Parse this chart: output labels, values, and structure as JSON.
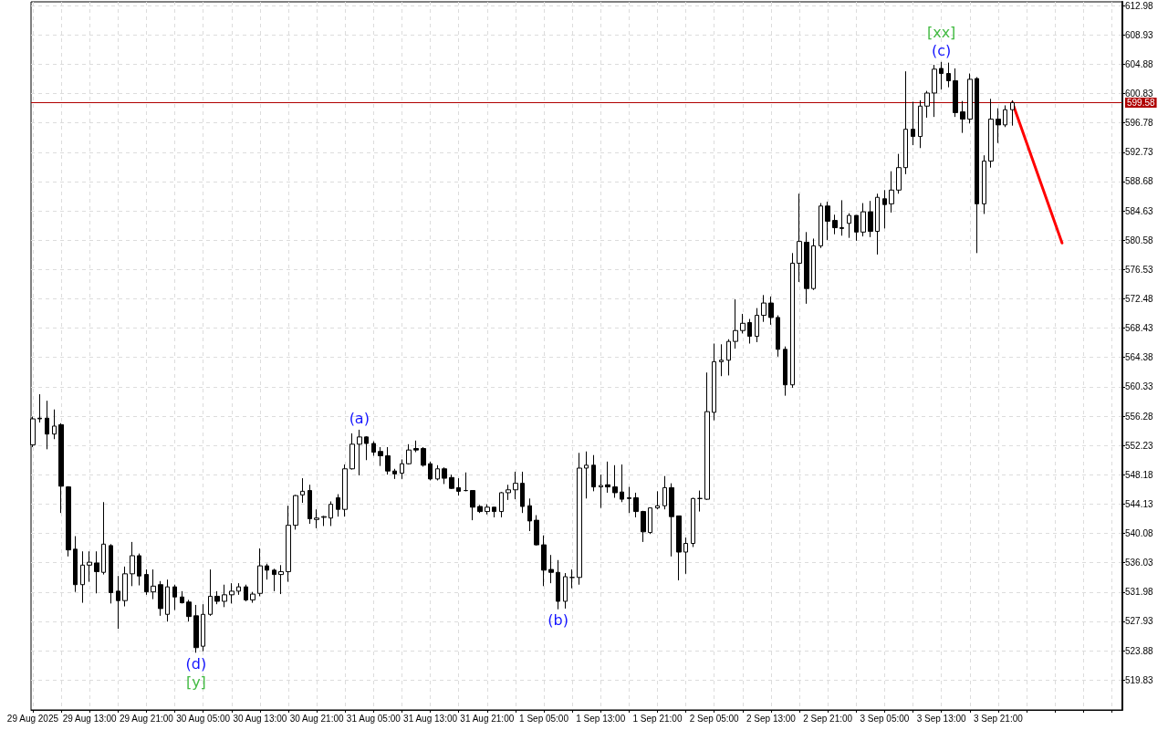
{
  "chart_data": {
    "type": "candlestick",
    "xlim": [
      "2025-08-29T04:45",
      "2025-09-04T14:30"
    ],
    "ylim": [
      515.7,
      613.5
    ],
    "xticks": [
      {
        "value": "2025-08-29T05:00",
        "label": "29 Aug 2025"
      },
      {
        "value": "2025-08-29T09:00",
        "label": null
      },
      {
        "value": "2025-08-29T13:00",
        "label": "29 Aug 13:00"
      },
      {
        "value": "2025-08-29T17:00",
        "label": null
      },
      {
        "value": "2025-08-29T21:00",
        "label": "29 Aug 21:00"
      },
      {
        "value": "2025-08-30T01:00",
        "label": null
      },
      {
        "value": "2025-08-30T05:00",
        "label": "30 Aug 05:00"
      },
      {
        "value": "2025-08-30T09:00",
        "label": null
      },
      {
        "value": "2025-08-30T13:00",
        "label": "30 Aug 13:00"
      },
      {
        "value": "2025-08-30T17:00",
        "label": null
      },
      {
        "value": "2025-08-30T21:00",
        "label": "30 Aug 21:00"
      },
      {
        "value": "2025-08-31T01:00",
        "label": null
      },
      {
        "value": "2025-08-31T05:00",
        "label": "31 Aug 05:00"
      },
      {
        "value": "2025-08-31T09:00",
        "label": null
      },
      {
        "value": "2025-08-31T13:00",
        "label": "31 Aug 13:00"
      },
      {
        "value": "2025-08-31T17:00",
        "label": null
      },
      {
        "value": "2025-08-31T21:00",
        "label": "31 Aug 21:00"
      },
      {
        "value": "2025-09-01T01:00",
        "label": null
      },
      {
        "value": "2025-09-01T05:00",
        "label": "1 Sep 05:00"
      },
      {
        "value": "2025-09-01T09:00",
        "label": null
      },
      {
        "value": "2025-09-01T13:00",
        "label": "1 Sep 13:00"
      },
      {
        "value": "2025-09-01T17:00",
        "label": null
      },
      {
        "value": "2025-09-01T21:00",
        "label": "1 Sep 21:00"
      },
      {
        "value": "2025-09-02T01:00",
        "label": null
      },
      {
        "value": "2025-09-02T05:00",
        "label": "2 Sep 05:00"
      },
      {
        "value": "2025-09-02T09:00",
        "label": null
      },
      {
        "value": "2025-09-02T13:00",
        "label": "2 Sep 13:00"
      },
      {
        "value": "2025-09-02T17:00",
        "label": null
      },
      {
        "value": "2025-09-02T21:00",
        "label": "2 Sep 21:00"
      },
      {
        "value": "2025-09-03T01:00",
        "label": null
      },
      {
        "value": "2025-09-03T05:00",
        "label": "3 Sep 05:00"
      },
      {
        "value": "2025-09-03T09:00",
        "label": null
      },
      {
        "value": "2025-09-03T13:00",
        "label": "3 Sep 13:00"
      },
      {
        "value": "2025-09-03T17:00",
        "label": null
      },
      {
        "value": "2025-09-03T21:00",
        "label": "3 Sep 21:00"
      },
      {
        "value": "2025-09-04T01:00",
        "label": null
      },
      {
        "value": "2025-09-04T05:00",
        "label": null
      },
      {
        "value": "2025-09-04T09:00",
        "label": null
      },
      {
        "value": "2025-09-04T13:00",
        "label": null
      }
    ],
    "yticks": [
      519.83,
      523.88,
      527.93,
      531.98,
      536.03,
      540.08,
      544.13,
      548.18,
      552.23,
      556.28,
      560.33,
      564.38,
      568.43,
      572.48,
      576.53,
      580.58,
      584.63,
      588.68,
      592.73,
      596.78,
      600.83,
      604.88,
      608.93,
      612.98
    ],
    "grid": true,
    "marker": "none",
    "series": [
      {
        "color": "#000000",
        "x": [
          "2025-08-29T05:00",
          "2025-08-29T06:00",
          "2025-08-29T07:00",
          "2025-08-29T08:00",
          "2025-08-29T09:00",
          "2025-08-29T10:00",
          "2025-08-29T11:00",
          "2025-08-29T12:00",
          "2025-08-29T13:00",
          "2025-08-29T14:00",
          "2025-08-29T15:00",
          "2025-08-29T16:00",
          "2025-08-29T17:00",
          "2025-08-29T18:00",
          "2025-08-29T19:00",
          "2025-08-29T20:00",
          "2025-08-29T21:00",
          "2025-08-29T22:00",
          "2025-08-29T23:00",
          "2025-08-30T00:00",
          "2025-08-30T01:00",
          "2025-08-30T02:00",
          "2025-08-30T03:00",
          "2025-08-30T04:00",
          "2025-08-30T05:00",
          "2025-08-30T06:00",
          "2025-08-30T07:00",
          "2025-08-30T08:00",
          "2025-08-30T09:00",
          "2025-08-30T10:00",
          "2025-08-30T11:00",
          "2025-08-30T12:00",
          "2025-08-30T13:00",
          "2025-08-30T14:00",
          "2025-08-30T15:00",
          "2025-08-30T16:00",
          "2025-08-30T17:00",
          "2025-08-30T18:00",
          "2025-08-30T19:00",
          "2025-08-30T20:00",
          "2025-08-30T21:00",
          "2025-08-30T22:00",
          "2025-08-30T23:00",
          "2025-08-31T00:00",
          "2025-08-31T01:00",
          "2025-08-31T02:00",
          "2025-08-31T03:00",
          "2025-08-31T04:00",
          "2025-08-31T05:00",
          "2025-08-31T06:00",
          "2025-08-31T07:00",
          "2025-08-31T08:00",
          "2025-08-31T09:00",
          "2025-08-31T10:00",
          "2025-08-31T11:00",
          "2025-08-31T12:00",
          "2025-08-31T13:00",
          "2025-08-31T14:00",
          "2025-08-31T15:00",
          "2025-08-31T16:00",
          "2025-08-31T17:00",
          "2025-08-31T18:00",
          "2025-08-31T19:00",
          "2025-08-31T20:00",
          "2025-08-31T21:00",
          "2025-08-31T22:00",
          "2025-08-31T23:00",
          "2025-09-01T00:00",
          "2025-09-01T01:00",
          "2025-09-01T02:00",
          "2025-09-01T03:00",
          "2025-09-01T04:00",
          "2025-09-01T05:00",
          "2025-09-01T06:00",
          "2025-09-01T07:00",
          "2025-09-01T08:00",
          "2025-09-01T09:00",
          "2025-09-01T10:00",
          "2025-09-01T11:00",
          "2025-09-01T12:00",
          "2025-09-01T13:00",
          "2025-09-01T14:00",
          "2025-09-01T15:00",
          "2025-09-01T16:00",
          "2025-09-01T17:00",
          "2025-09-01T18:00",
          "2025-09-01T19:00",
          "2025-09-01T20:00",
          "2025-09-01T21:00",
          "2025-09-01T22:00",
          "2025-09-01T23:00",
          "2025-09-02T00:00",
          "2025-09-02T01:00",
          "2025-09-02T02:00",
          "2025-09-02T03:00",
          "2025-09-02T04:00",
          "2025-09-02T05:00",
          "2025-09-02T06:00",
          "2025-09-02T07:00",
          "2025-09-02T08:00",
          "2025-09-02T09:00",
          "2025-09-02T10:00",
          "2025-09-02T11:00",
          "2025-09-02T12:00",
          "2025-09-02T13:00",
          "2025-09-02T14:00",
          "2025-09-02T15:00",
          "2025-09-02T16:00",
          "2025-09-02T17:00",
          "2025-09-02T18:00",
          "2025-09-02T19:00",
          "2025-09-02T20:00",
          "2025-09-02T21:00",
          "2025-09-02T22:00",
          "2025-09-02T23:00",
          "2025-09-03T00:00",
          "2025-09-03T01:00",
          "2025-09-03T02:00",
          "2025-09-03T03:00",
          "2025-09-03T04:00",
          "2025-09-03T05:00",
          "2025-09-03T06:00",
          "2025-09-03T07:00",
          "2025-09-03T08:00",
          "2025-09-03T09:00",
          "2025-09-03T10:00",
          "2025-09-03T11:00",
          "2025-09-03T12:00",
          "2025-09-03T13:00",
          "2025-09-03T14:00",
          "2025-09-03T15:00",
          "2025-09-03T16:00",
          "2025-09-03T17:00",
          "2025-09-03T18:00",
          "2025-09-03T19:00",
          "2025-09-03T20:00",
          "2025-09-03T21:00",
          "2025-09-03T22:00",
          "2025-09-03T23:00"
        ],
        "ohlc": [
          [
            552.3,
            556.2,
            552.0,
            555.9
          ],
          [
            556.0,
            559.3,
            555.4,
            555.9
          ],
          [
            556.0,
            558.4,
            551.7,
            553.8
          ],
          [
            553.8,
            557.2,
            553.1,
            554.9
          ],
          [
            555.1,
            555.3,
            542.9,
            546.6
          ],
          [
            546.5,
            546.6,
            536.9,
            537.8
          ],
          [
            537.9,
            539.7,
            532.0,
            533.0
          ],
          [
            533.0,
            537.6,
            530.5,
            535.7
          ],
          [
            535.7,
            537.6,
            533.4,
            536.1
          ],
          [
            536.0,
            537.6,
            531.8,
            534.8
          ],
          [
            534.7,
            544.4,
            534.4,
            538.6
          ],
          [
            538.4,
            538.6,
            530.4,
            531.9
          ],
          [
            532.1,
            534.2,
            526.9,
            530.8
          ],
          [
            530.8,
            535.5,
            530.0,
            534.5
          ],
          [
            534.5,
            538.9,
            532.8,
            537.0
          ],
          [
            537.0,
            537.3,
            532.9,
            534.2
          ],
          [
            534.4,
            535.1,
            531.6,
            532.0
          ],
          [
            532.0,
            535.1,
            531.0,
            532.8
          ],
          [
            533.0,
            533.5,
            528.7,
            529.7
          ],
          [
            528.9,
            533.7,
            527.9,
            532.7
          ],
          [
            532.7,
            533.0,
            529.5,
            531.3
          ],
          [
            531.3,
            532.1,
            530.4,
            530.5
          ],
          [
            530.6,
            530.9,
            527.9,
            528.6
          ],
          [
            528.7,
            530.2,
            523.6,
            524.3
          ],
          [
            524.5,
            530.3,
            523.8,
            528.9
          ],
          [
            528.9,
            535.1,
            528.7,
            531.4
          ],
          [
            531.4,
            532.1,
            530.3,
            530.7
          ],
          [
            530.7,
            533.0,
            529.9,
            531.6
          ],
          [
            531.6,
            533.2,
            530.4,
            532.1
          ],
          [
            532.1,
            533.2,
            531.6,
            532.7
          ],
          [
            532.7,
            533.0,
            530.7,
            530.9
          ],
          [
            530.9,
            532.0,
            530.5,
            531.7
          ],
          [
            531.8,
            538.0,
            531.4,
            535.6
          ],
          [
            535.6,
            535.9,
            533.7,
            535.0
          ],
          [
            535.0,
            535.2,
            532.1,
            534.4
          ],
          [
            534.4,
            535.7,
            531.7,
            534.8
          ],
          [
            534.8,
            543.9,
            533.4,
            541.2
          ],
          [
            541.2,
            545.4,
            540.6,
            545.3
          ],
          [
            545.4,
            547.7,
            544.3,
            545.9
          ],
          [
            546.0,
            546.8,
            541.4,
            542.1
          ],
          [
            542.0,
            543.4,
            540.8,
            542.2
          ],
          [
            542.3,
            542.5,
            541.1,
            542.4
          ],
          [
            542.2,
            544.5,
            541.1,
            544.1
          ],
          [
            545.0,
            545.5,
            542.4,
            543.4
          ],
          [
            543.4,
            549.6,
            542.4,
            549.0
          ],
          [
            549.0,
            553.9,
            548.9,
            552.4
          ],
          [
            552.4,
            554.4,
            548.1,
            553.4
          ],
          [
            553.4,
            553.5,
            550.2,
            552.5
          ],
          [
            552.5,
            552.8,
            550.8,
            551.3
          ],
          [
            551.4,
            552.0,
            549.4,
            550.8
          ],
          [
            550.8,
            552.0,
            548.2,
            548.7
          ],
          [
            548.7,
            549.0,
            547.6,
            548.3
          ],
          [
            548.4,
            550.3,
            547.6,
            549.7
          ],
          [
            549.7,
            552.4,
            549.6,
            551.6
          ],
          [
            551.8,
            552.9,
            551.3,
            551.6
          ],
          [
            551.8,
            552.0,
            549.3,
            549.5
          ],
          [
            549.7,
            550.0,
            547.4,
            547.6
          ],
          [
            547.6,
            549.5,
            547.4,
            549.0
          ],
          [
            549.0,
            549.2,
            546.9,
            547.7
          ],
          [
            547.8,
            548.2,
            546.2,
            546.3
          ],
          [
            546.4,
            547.7,
            545.3,
            545.9
          ],
          [
            546.0,
            548.5,
            545.9,
            546.0
          ],
          [
            546.0,
            546.0,
            541.9,
            543.7
          ],
          [
            543.8,
            544.0,
            542.9,
            543.1
          ],
          [
            543.1,
            544.1,
            542.7,
            543.7
          ],
          [
            543.7,
            543.7,
            542.3,
            543.1
          ],
          [
            543.1,
            545.8,
            542.3,
            545.7
          ],
          [
            545.7,
            546.8,
            544.7,
            546.1
          ],
          [
            546.1,
            548.6,
            544.8,
            547.0
          ],
          [
            547.0,
            548.6,
            542.9,
            543.8
          ],
          [
            543.9,
            544.9,
            540.4,
            541.8
          ],
          [
            541.9,
            542.6,
            538.4,
            538.5
          ],
          [
            538.5,
            539.8,
            532.8,
            535.0
          ],
          [
            535.1,
            537.1,
            533.2,
            534.7
          ],
          [
            534.7,
            536.4,
            529.6,
            530.7
          ],
          [
            530.7,
            534.6,
            529.7,
            534.1
          ],
          [
            534.0,
            535.1,
            532.5,
            534.0
          ],
          [
            534.0,
            551.2,
            533.0,
            549.1
          ],
          [
            549.1,
            551.4,
            544.9,
            549.5
          ],
          [
            549.5,
            550.9,
            545.9,
            546.5
          ],
          [
            546.5,
            548.2,
            543.6,
            546.7
          ],
          [
            546.8,
            550.0,
            545.7,
            546.5
          ],
          [
            546.5,
            549.5,
            545.0,
            545.7
          ],
          [
            545.8,
            549.6,
            544.4,
            544.8
          ],
          [
            545.0,
            546.5,
            542.9,
            544.9
          ],
          [
            545.0,
            545.7,
            542.3,
            543.1
          ],
          [
            543.1,
            543.2,
            538.9,
            540.3
          ],
          [
            540.2,
            543.6,
            540.0,
            543.6
          ],
          [
            543.6,
            545.9,
            543.4,
            543.9
          ],
          [
            543.9,
            548.0,
            543.4,
            546.4
          ],
          [
            546.4,
            547.0,
            536.9,
            542.4
          ],
          [
            542.5,
            542.5,
            533.6,
            537.5
          ],
          [
            537.5,
            539.5,
            534.5,
            538.7
          ],
          [
            538.7,
            545.0,
            538.2,
            544.9
          ],
          [
            544.9,
            546.0,
            543.1,
            544.9
          ],
          [
            544.8,
            562.3,
            544.7,
            556.9
          ],
          [
            556.8,
            566.3,
            555.7,
            563.8
          ],
          [
            563.8,
            566.2,
            561.8,
            564.0
          ],
          [
            564.0,
            566.9,
            561.9,
            566.6
          ],
          [
            566.6,
            572.4,
            565.6,
            568.1
          ],
          [
            568.1,
            570.4,
            567.7,
            569.1
          ],
          [
            569.2,
            569.7,
            566.3,
            567.3
          ],
          [
            567.3,
            571.2,
            566.5,
            570.2
          ],
          [
            570.2,
            573.0,
            569.3,
            571.9
          ],
          [
            571.9,
            572.8,
            568.9,
            569.9
          ],
          [
            569.9,
            570.2,
            564.5,
            565.5
          ],
          [
            565.5,
            565.9,
            559.1,
            560.6
          ],
          [
            560.6,
            578.8,
            560.2,
            577.4
          ],
          [
            577.4,
            587.0,
            574.8,
            580.4
          ],
          [
            580.3,
            581.7,
            571.8,
            573.9
          ],
          [
            573.9,
            580.8,
            573.7,
            579.8
          ],
          [
            579.8,
            585.7,
            579.5,
            585.3
          ],
          [
            585.3,
            585.9,
            580.6,
            583.2
          ],
          [
            583.3,
            584.1,
            581.4,
            582.3
          ],
          [
            582.3,
            586.1,
            581.2,
            582.2
          ],
          [
            582.9,
            584.3,
            580.9,
            584.0
          ],
          [
            584.0,
            584.0,
            580.5,
            581.7
          ],
          [
            581.7,
            585.7,
            581.1,
            584.5
          ],
          [
            584.5,
            586.0,
            581.0,
            581.8
          ],
          [
            581.8,
            587.0,
            578.6,
            586.5
          ],
          [
            586.3,
            587.5,
            582.2,
            585.5
          ],
          [
            585.6,
            590.1,
            584.4,
            587.5
          ],
          [
            587.5,
            592.5,
            587.0,
            590.6
          ],
          [
            590.6,
            603.9,
            589.7,
            595.9
          ],
          [
            595.9,
            599.7,
            593.7,
            594.9
          ],
          [
            594.9,
            599.9,
            593.3,
            599.1
          ],
          [
            599.1,
            601.2,
            597.5,
            600.9
          ],
          [
            600.9,
            604.8,
            597.6,
            604.2
          ],
          [
            604.3,
            605.2,
            601.4,
            603.6
          ],
          [
            603.6,
            605.1,
            601.7,
            602.6
          ],
          [
            602.6,
            604.3,
            597.6,
            598.2
          ],
          [
            598.3,
            599.8,
            595.4,
            597.3
          ],
          [
            597.3,
            603.6,
            596.7,
            602.8
          ],
          [
            602.9,
            603.1,
            578.8,
            585.6
          ],
          [
            585.6,
            592.3,
            584.2,
            591.5
          ],
          [
            591.5,
            600.1,
            590.6,
            597.3
          ],
          [
            597.3,
            598.8,
            594.0,
            596.5
          ],
          [
            596.5,
            599.2,
            596.2,
            598.6
          ],
          [
            598.6,
            599.9,
            596.4,
            599.58
          ]
        ]
      },
      {
        "type": "line",
        "color": "#ff0000",
        "x": [
          "2025-09-03T23:00",
          "2025-09-04T06:00"
        ],
        "values": [
          599.6,
          580.2
        ]
      }
    ],
    "ref_lines": [
      {
        "axis": "y",
        "value": 599.58,
        "label": "599.58",
        "color": "#b00000"
      }
    ],
    "annotations": [
      {
        "text": "(d)",
        "x": "2025-08-30T04:00",
        "y": 523.6
      },
      {
        "text": "[y]",
        "x": "2025-08-30T04:00",
        "y": 523.6
      },
      {
        "text": "(a)",
        "x": "2025-08-31T03:00",
        "y": 554.4
      },
      {
        "text": "(b)",
        "x": "2025-09-01T07:00",
        "y": 529.6
      },
      {
        "text": "(c)",
        "x": "2025-09-03T13:00",
        "y": 605.2
      },
      {
        "text": "[xx]",
        "x": "2025-09-03T13:00",
        "y": 605.2
      }
    ]
  }
}
